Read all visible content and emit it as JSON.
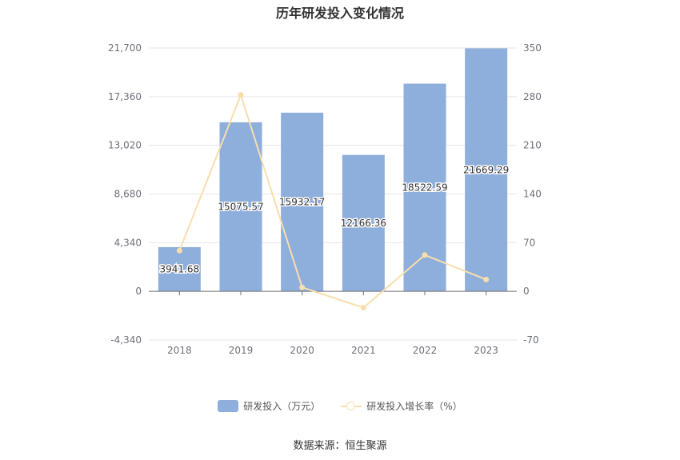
{
  "chart_data": {
    "type": "bar",
    "title": "历年研发投入变化情况",
    "categories": [
      "2018",
      "2019",
      "2020",
      "2021",
      "2022",
      "2023"
    ],
    "series": [
      {
        "name": "研发投入（万元）",
        "type": "bar",
        "axis": "left",
        "values": [
          3941.68,
          15075.57,
          15932.17,
          12166.36,
          18522.59,
          21669.29
        ],
        "labels": [
          "3941.68",
          "15075.57",
          "15932.17",
          "12166.36",
          "18522.59",
          "21669.29"
        ],
        "color": "#8eaedb"
      },
      {
        "name": "研发投入增长率（%）",
        "type": "line",
        "axis": "right",
        "values": [
          58.5,
          282.5,
          5.7,
          -23.6,
          52.2,
          17.0
        ],
        "color": "#f9deac"
      }
    ],
    "y_left": {
      "ylim": [
        -4340,
        21700
      ],
      "ticks": [
        -4340,
        0,
        4340,
        8680,
        13020,
        17360,
        21700
      ],
      "tick_labels": [
        "-4,340",
        "0",
        "4,340",
        "8,680",
        "13,020",
        "17,360",
        "21,700"
      ]
    },
    "y_right": {
      "ylim": [
        -70,
        350
      ],
      "ticks": [
        -70,
        0,
        70,
        140,
        210,
        280,
        350
      ],
      "tick_labels": [
        "-70",
        "0",
        "70",
        "140",
        "210",
        "280",
        "350"
      ]
    },
    "grid": true,
    "legend": "bottom-center"
  },
  "source_text": "数据来源：恒生聚源"
}
